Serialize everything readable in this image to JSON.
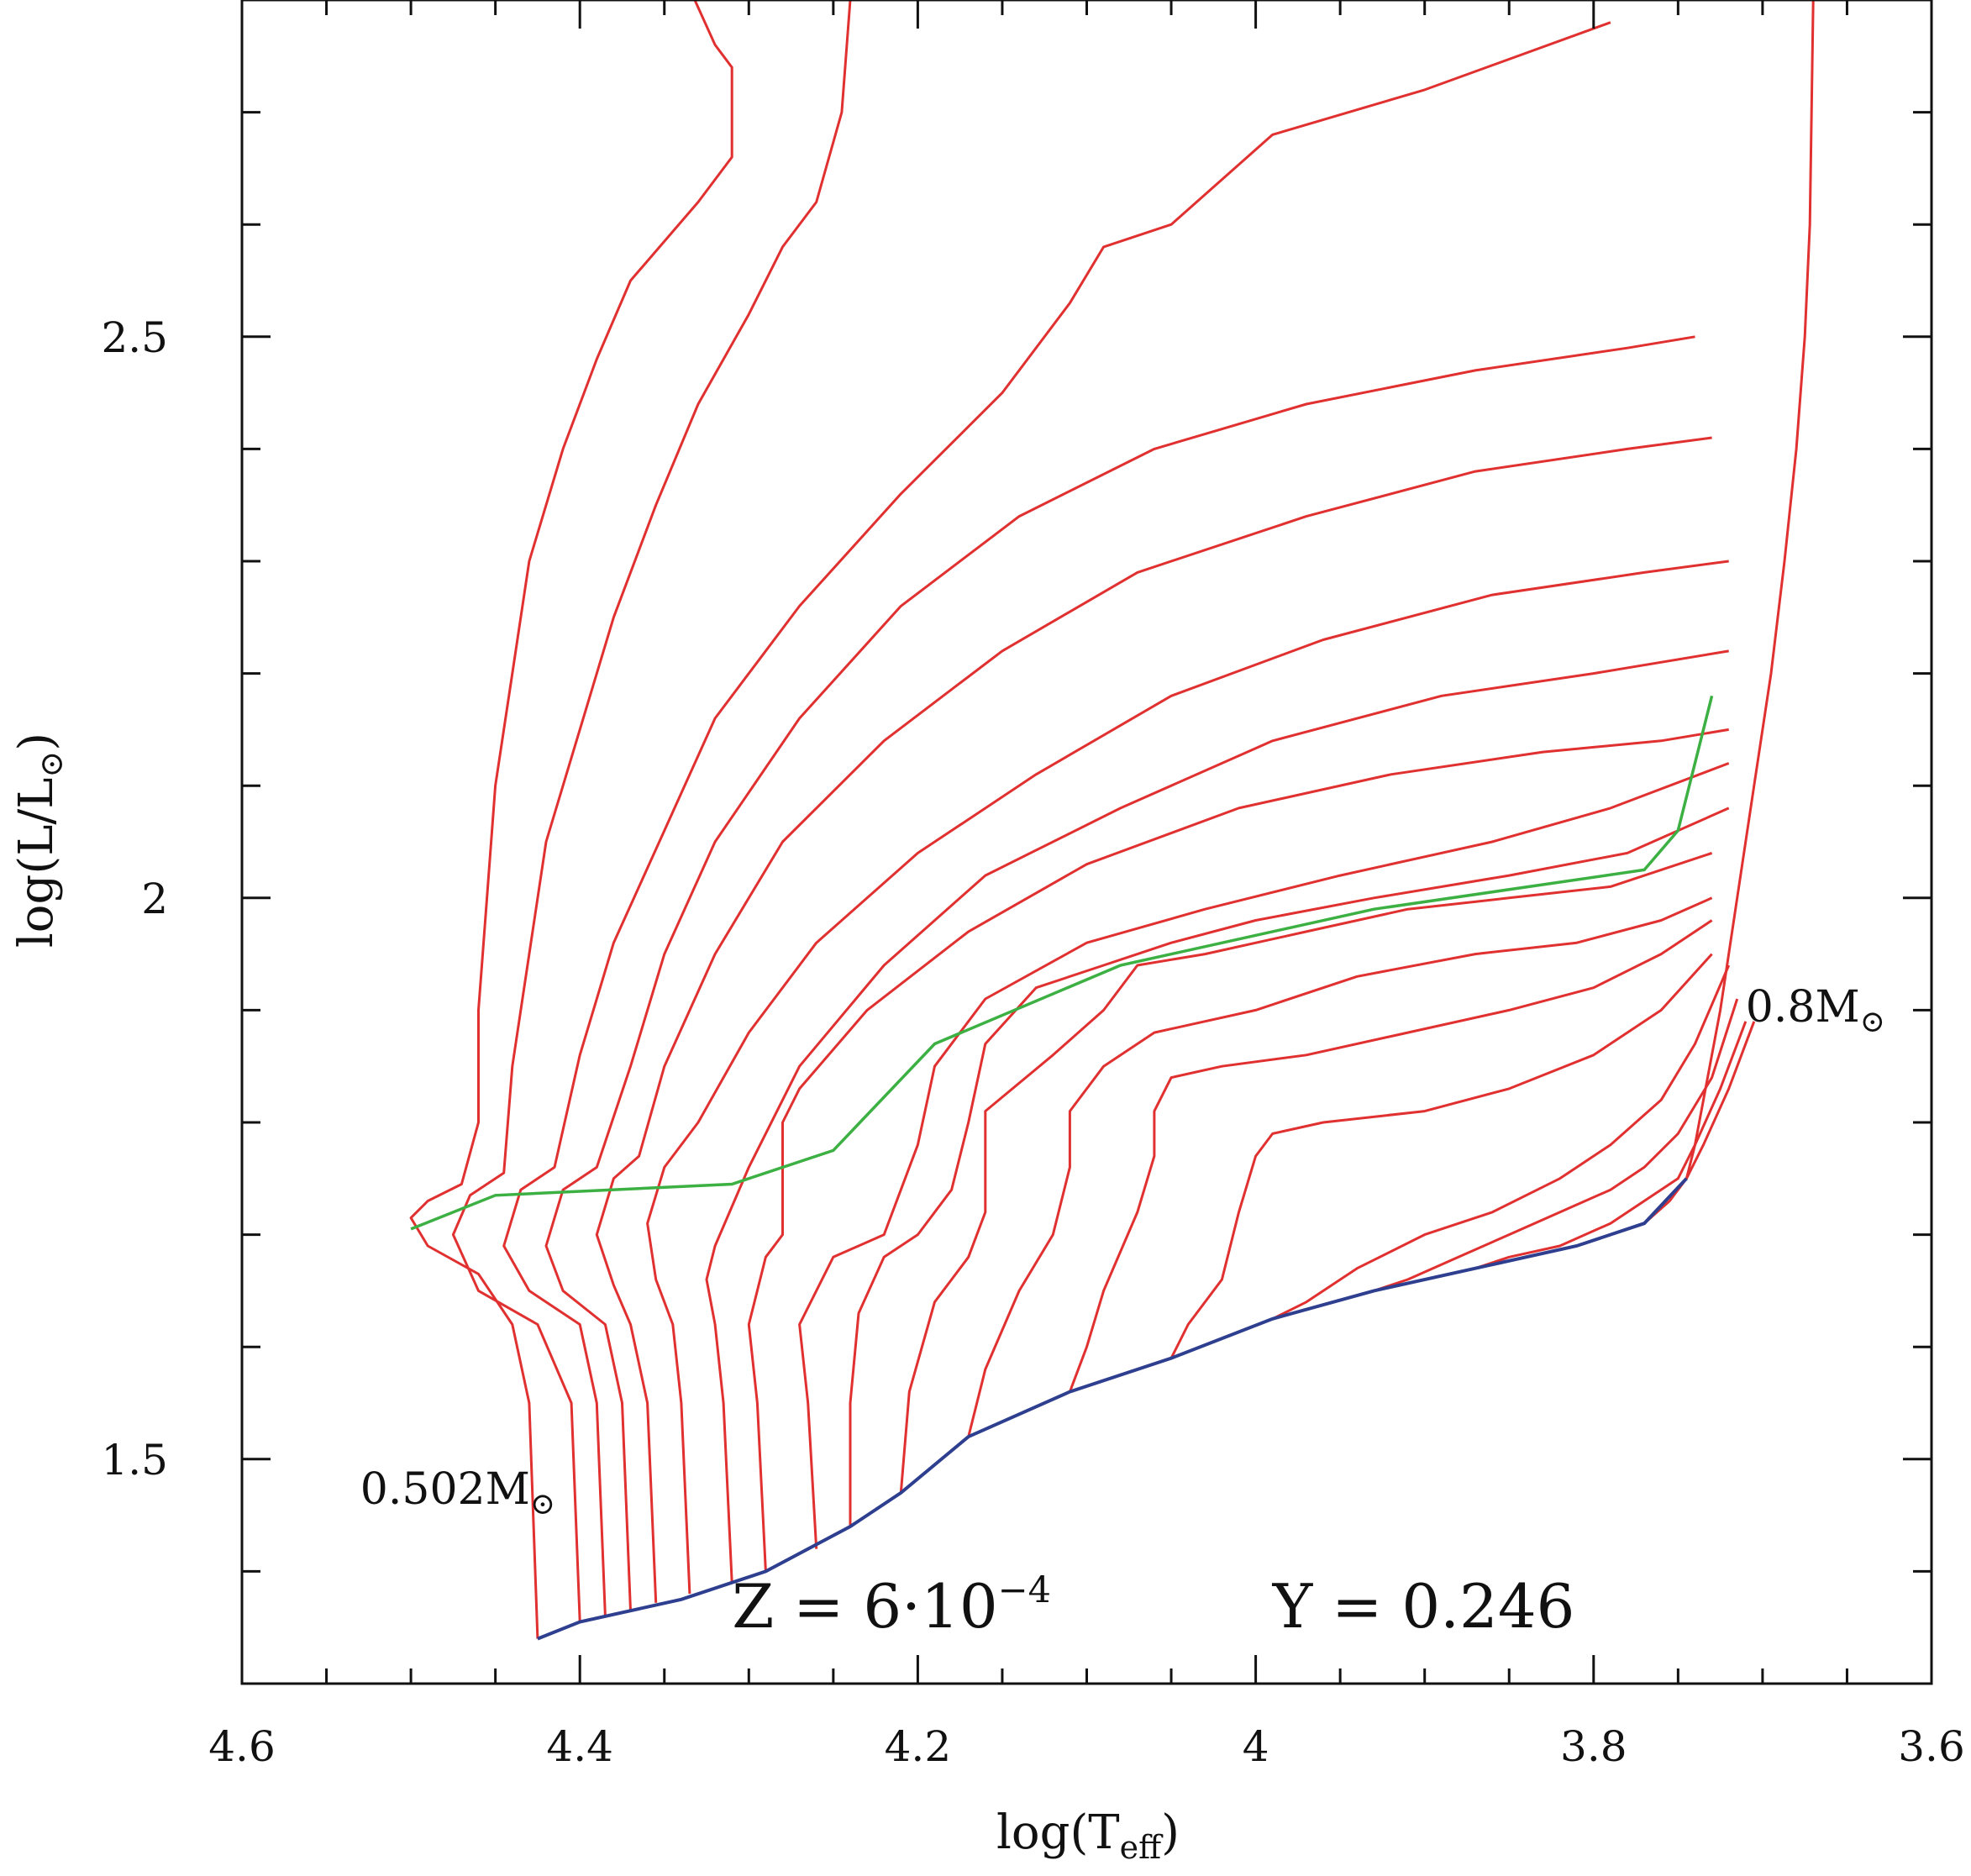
{
  "chart_data": {
    "type": "line",
    "title": "",
    "xlabel": {
      "base": "log(T",
      "sub": "eff",
      "close": ")"
    },
    "ylabel": {
      "base": "log(L/L",
      "sub": "⊙",
      "close": ")"
    },
    "x_reversed": true,
    "xlim": [
      4.6,
      3.6
    ],
    "ylim": [
      1.3,
      2.8
    ],
    "x_ticks": [
      {
        "value": 4.6,
        "label": "4.6"
      },
      {
        "value": 4.4,
        "label": "4.4"
      },
      {
        "value": 4.2,
        "label": "4.2"
      },
      {
        "value": 4.0,
        "label": "4"
      },
      {
        "value": 3.8,
        "label": "3.8"
      },
      {
        "value": 3.6,
        "label": "3.6"
      }
    ],
    "y_ticks": [
      {
        "value": 1.5,
        "label": "1.5"
      },
      {
        "value": 2.0,
        "label": "2"
      },
      {
        "value": 2.5,
        "label": "2.5"
      }
    ],
    "annotations": [
      {
        "text": "0.502M",
        "sub": "⊙",
        "x": 4.53,
        "y": 1.46
      },
      {
        "text": "0.8M",
        "sub": "⊙",
        "x": 3.71,
        "y": 1.89
      },
      {
        "text": "Z = 6·10",
        "sup": "−4",
        "x": 4.31,
        "y": 1.35
      },
      {
        "text": "Y = 0.246",
        "x": 3.99,
        "y": 1.35
      }
    ],
    "colors": {
      "tracks": "#e03030",
      "zahb": "#2e3f8f",
      "green": "#3cb043"
    },
    "zahb": {
      "x": [
        4.425,
        4.4,
        4.34,
        4.29,
        4.24,
        4.21,
        4.17,
        4.11,
        4.05,
        3.99,
        3.93,
        3.87,
        3.81,
        3.77,
        3.745
      ],
      "y": [
        1.34,
        1.355,
        1.375,
        1.4,
        1.44,
        1.47,
        1.52,
        1.56,
        1.59,
        1.625,
        1.65,
        1.67,
        1.69,
        1.71,
        1.75
      ]
    },
    "green_line": {
      "x": [
        4.5,
        4.45,
        4.31,
        4.25,
        4.19,
        4.08,
        3.93,
        3.77,
        3.75,
        3.73
      ],
      "y": [
        1.705,
        1.735,
        1.745,
        1.775,
        1.87,
        1.94,
        1.99,
        2.025,
        2.06,
        2.18
      ]
    },
    "series": [
      {
        "x": [
          4.425,
          4.43,
          4.44,
          4.46,
          4.49,
          4.5,
          4.49,
          4.47,
          4.46,
          4.46,
          4.455,
          4.45,
          4.44,
          4.43,
          4.41,
          4.39,
          4.37,
          4.33,
          4.31,
          4.31,
          4.32,
          4.335
        ],
        "y": [
          1.34,
          1.55,
          1.62,
          1.665,
          1.69,
          1.715,
          1.73,
          1.745,
          1.8,
          1.9,
          2.0,
          2.1,
          2.2,
          2.3,
          2.4,
          2.48,
          2.55,
          2.62,
          2.66,
          2.74,
          2.76,
          2.81
        ]
      },
      {
        "x": [
          4.4,
          4.405,
          4.425,
          4.46,
          4.475,
          4.465,
          4.445,
          4.44,
          4.43,
          4.42,
          4.4,
          4.38,
          4.355,
          4.33,
          4.3,
          4.28,
          4.26,
          4.245,
          4.24
        ],
        "y": [
          1.355,
          1.55,
          1.62,
          1.65,
          1.7,
          1.735,
          1.755,
          1.85,
          1.95,
          2.05,
          2.15,
          2.25,
          2.35,
          2.44,
          2.52,
          2.58,
          2.62,
          2.7,
          2.8
        ]
      },
      {
        "x": [
          4.385,
          4.39,
          4.4,
          4.43,
          4.445,
          4.435,
          4.415,
          4.4,
          4.38,
          4.35,
          4.32,
          4.27,
          4.21,
          4.15,
          4.11,
          4.09,
          4.05,
          3.99,
          3.9,
          3.79
        ],
        "y": [
          1.36,
          1.55,
          1.62,
          1.65,
          1.69,
          1.74,
          1.76,
          1.86,
          1.96,
          2.06,
          2.16,
          2.26,
          2.36,
          2.45,
          2.53,
          2.58,
          2.6,
          2.68,
          2.72,
          2.78
        ]
      },
      {
        "x": [
          4.37,
          4.375,
          4.385,
          4.41,
          4.42,
          4.41,
          4.39,
          4.37,
          4.35,
          4.32,
          4.27,
          4.21,
          4.14,
          4.06,
          3.97,
          3.87,
          3.78,
          3.74
        ],
        "y": [
          1.365,
          1.55,
          1.62,
          1.65,
          1.69,
          1.74,
          1.76,
          1.85,
          1.95,
          2.05,
          2.16,
          2.26,
          2.34,
          2.4,
          2.44,
          2.47,
          2.49,
          2.5
        ]
      },
      {
        "x": [
          4.355,
          4.36,
          4.37,
          4.38,
          4.39,
          4.38,
          4.365,
          4.35,
          4.32,
          4.28,
          4.22,
          4.15,
          4.07,
          3.97,
          3.87,
          3.78,
          3.73
        ],
        "y": [
          1.372,
          1.55,
          1.62,
          1.655,
          1.7,
          1.75,
          1.77,
          1.85,
          1.95,
          2.05,
          2.14,
          2.22,
          2.29,
          2.34,
          2.38,
          2.4,
          2.41
        ]
      },
      {
        "x": [
          4.335,
          4.34,
          4.345,
          4.355,
          4.36,
          4.35,
          4.33,
          4.3,
          4.26,
          4.2,
          4.13,
          4.05,
          3.96,
          3.86,
          3.77,
          3.72
        ],
        "y": [
          1.38,
          1.55,
          1.62,
          1.66,
          1.71,
          1.76,
          1.8,
          1.88,
          1.96,
          2.04,
          2.11,
          2.18,
          2.23,
          2.27,
          2.29,
          2.3
        ]
      },
      {
        "x": [
          4.31,
          4.315,
          4.32,
          4.325,
          4.32,
          4.3,
          4.27,
          4.22,
          4.16,
          4.08,
          3.99,
          3.89,
          3.8,
          3.72
        ],
        "y": [
          1.39,
          1.55,
          1.62,
          1.66,
          1.69,
          1.76,
          1.85,
          1.94,
          2.02,
          2.08,
          2.14,
          2.18,
          2.2,
          2.22
        ]
      },
      {
        "x": [
          4.29,
          4.295,
          4.3,
          4.29,
          4.28,
          4.28,
          4.27,
          4.23,
          4.17,
          4.1,
          4.01,
          3.92,
          3.83,
          3.76,
          3.72
        ],
        "y": [
          1.4,
          1.55,
          1.62,
          1.68,
          1.7,
          1.8,
          1.83,
          1.9,
          1.97,
          2.03,
          2.08,
          2.11,
          2.13,
          2.14,
          2.15
        ]
      },
      {
        "x": [
          4.26,
          4.265,
          4.27,
          4.25,
          4.22,
          4.2,
          4.19,
          4.16,
          4.1,
          4.03,
          3.95,
          3.86,
          3.79,
          3.72
        ],
        "y": [
          1.42,
          1.55,
          1.62,
          1.68,
          1.7,
          1.78,
          1.85,
          1.91,
          1.96,
          1.99,
          2.02,
          2.05,
          2.08,
          2.12
        ]
      },
      {
        "x": [
          4.24,
          4.24,
          4.235,
          4.22,
          4.2,
          4.18,
          4.17,
          4.16,
          4.13,
          4.09,
          4.05,
          4.0,
          3.93,
          3.85,
          3.78,
          3.72
        ],
        "y": [
          1.44,
          1.55,
          1.63,
          1.68,
          1.7,
          1.74,
          1.8,
          1.87,
          1.92,
          1.94,
          1.96,
          1.98,
          2.0,
          2.02,
          2.04,
          2.08
        ]
      },
      {
        "x": [
          4.21,
          4.205,
          4.19,
          4.17,
          4.16,
          4.16,
          4.12,
          4.09,
          4.07,
          4.03,
          3.97,
          3.91,
          3.85,
          3.79,
          3.73
        ],
        "y": [
          1.47,
          1.56,
          1.64,
          1.68,
          1.72,
          1.81,
          1.86,
          1.9,
          1.94,
          1.95,
          1.97,
          1.99,
          2.0,
          2.01,
          2.04
        ]
      },
      {
        "x": [
          4.17,
          4.16,
          4.14,
          4.12,
          4.11,
          4.11,
          4.09,
          4.06,
          4.0,
          3.94,
          3.87,
          3.81,
          3.76,
          3.73
        ],
        "y": [
          1.52,
          1.58,
          1.65,
          1.7,
          1.76,
          1.81,
          1.85,
          1.88,
          1.9,
          1.93,
          1.95,
          1.96,
          1.98,
          2.0
        ]
      },
      {
        "x": [
          4.11,
          4.1,
          4.09,
          4.07,
          4.06,
          4.06,
          4.05,
          4.02,
          3.97,
          3.91,
          3.85,
          3.8,
          3.76,
          3.73
        ],
        "y": [
          1.56,
          1.6,
          1.65,
          1.72,
          1.77,
          1.81,
          1.84,
          1.85,
          1.86,
          1.88,
          1.9,
          1.92,
          1.95,
          1.98
        ]
      },
      {
        "x": [
          4.05,
          4.04,
          4.02,
          4.01,
          4.0,
          3.99,
          3.96,
          3.9,
          3.85,
          3.8,
          3.76,
          3.73
        ],
        "y": [
          1.59,
          1.62,
          1.66,
          1.72,
          1.77,
          1.79,
          1.8,
          1.81,
          1.83,
          1.86,
          1.9,
          1.95
        ]
      },
      {
        "x": [
          3.99,
          3.97,
          3.94,
          3.9,
          3.86,
          3.82,
          3.79,
          3.76,
          3.74,
          3.72
        ],
        "y": [
          1.625,
          1.64,
          1.67,
          1.7,
          1.72,
          1.75,
          1.78,
          1.82,
          1.87,
          1.94
        ]
      },
      {
        "x": [
          3.93,
          3.91,
          3.88,
          3.85,
          3.82,
          3.79,
          3.77,
          3.75,
          3.73,
          3.715
        ],
        "y": [
          1.65,
          1.66,
          1.68,
          1.7,
          1.72,
          1.74,
          1.76,
          1.79,
          1.84,
          1.91
        ]
      },
      {
        "x": [
          3.87,
          3.85,
          3.82,
          3.79,
          3.77,
          3.75,
          3.74,
          3.725,
          3.71
        ],
        "y": [
          1.67,
          1.68,
          1.69,
          1.71,
          1.73,
          1.75,
          1.78,
          1.83,
          1.89
        ]
      },
      {
        "x": [
          3.81,
          3.79,
          3.77,
          3.755,
          3.745,
          3.735,
          3.72,
          3.705
        ],
        "y": [
          1.69,
          1.7,
          1.71,
          1.73,
          1.75,
          1.78,
          1.83,
          1.89
        ]
      },
      {
        "x": [
          3.745,
          3.74,
          3.735,
          3.725,
          3.715,
          3.705,
          3.695,
          3.687,
          3.68,
          3.675,
          3.672,
          3.67
        ],
        "y": [
          1.75,
          1.78,
          1.82,
          1.9,
          2.0,
          2.1,
          2.2,
          2.3,
          2.4,
          2.5,
          2.6,
          2.8
        ]
      }
    ]
  }
}
